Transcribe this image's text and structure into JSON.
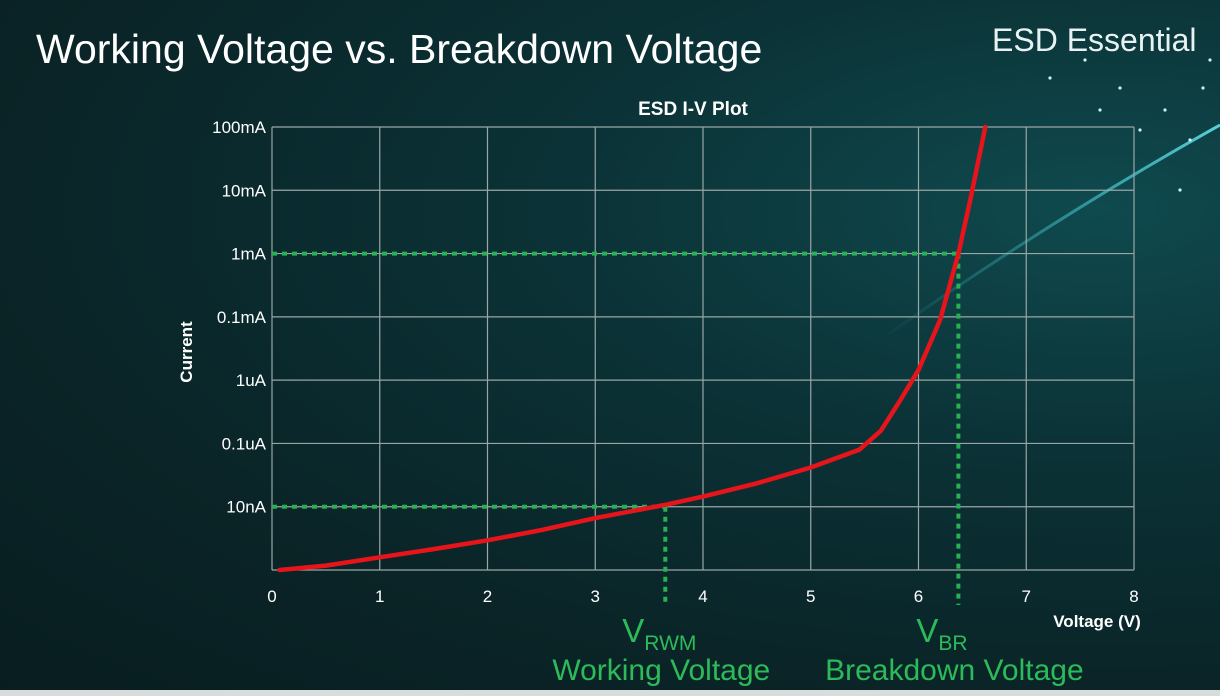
{
  "slide": {
    "title": "Working Voltage vs. Breakdown Voltage",
    "brand": "ESD Essential"
  },
  "colors": {
    "curve": "#e8141b",
    "marker": "#27b150",
    "grid": "#9aa6a6",
    "label_green": "#2dbb5a"
  },
  "chart_data": {
    "type": "line",
    "title": "ESD I-V Plot",
    "xlabel": "Voltage (V)",
    "ylabel": "Current",
    "xlim": [
      0,
      8
    ],
    "x_ticks": [
      "0",
      "1",
      "2",
      "3",
      "4",
      "5",
      "6",
      "7",
      "8"
    ],
    "y_scale": "log (categorical decade rows)",
    "y_ticks": [
      "10nA",
      "0.1uA",
      "1uA",
      "0.1mA",
      "1mA",
      "10mA",
      "100mA"
    ],
    "grid": true,
    "series": [
      {
        "points_x": [
          0.07,
          0.5,
          1,
          1.5,
          2,
          2.5,
          3,
          3.65,
          4,
          4.5,
          5,
          5.45,
          5.65,
          5.83,
          6.0,
          6.2,
          6.37,
          6.48,
          6.62
        ],
        "points_y_row": [
          0,
          0.07,
          0.2,
          0.33,
          0.47,
          0.63,
          0.82,
          1.03,
          1.16,
          1.37,
          1.62,
          1.9,
          2.2,
          2.68,
          3.16,
          3.95,
          5.0,
          5.84,
          7.0
        ]
      }
    ],
    "annotations": [
      {
        "label": "V",
        "sub": "RWM",
        "caption": "Working Voltage",
        "x": 3.65,
        "current": "10nA"
      },
      {
        "label": "V",
        "sub": "BR",
        "caption": "Breakdown Voltage",
        "x": 6.37,
        "current": "1mA"
      }
    ]
  }
}
